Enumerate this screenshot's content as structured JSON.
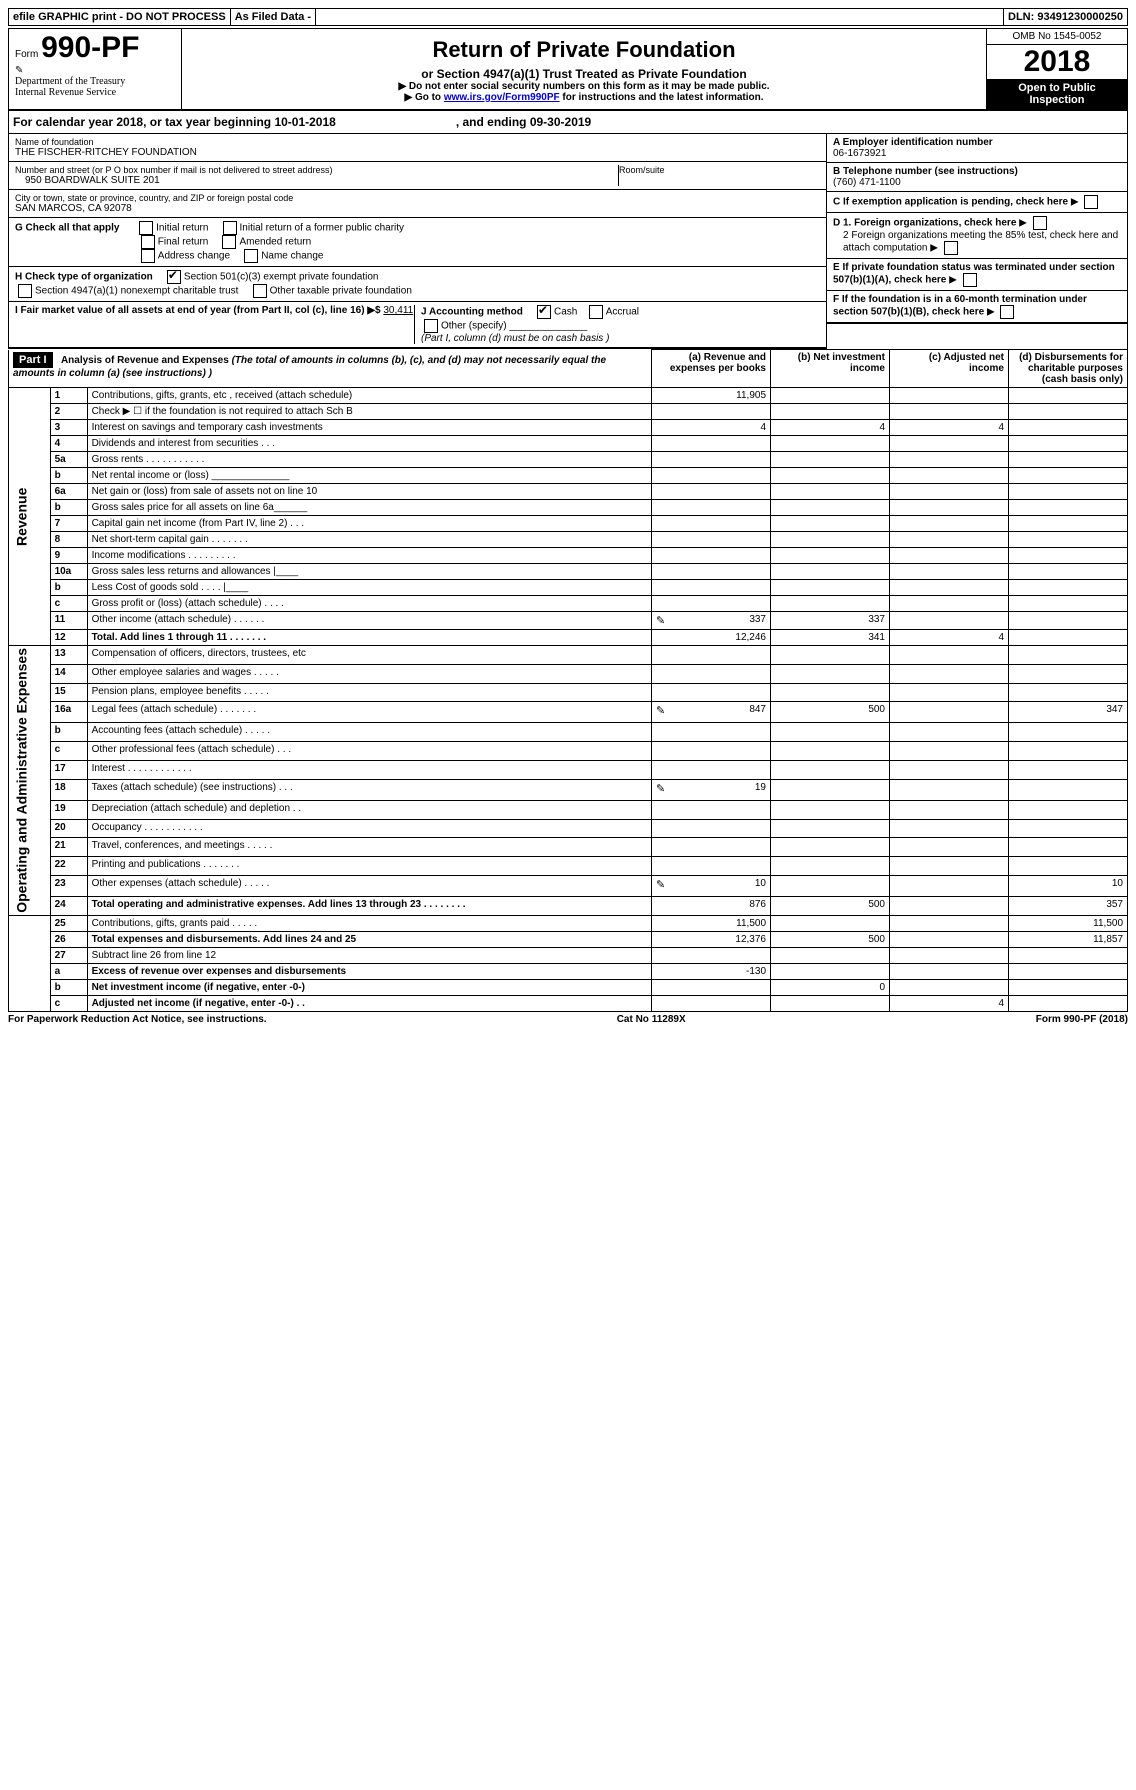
{
  "topbar": {
    "left": "efile GRAPHIC print - DO NOT PROCESS",
    "mid": "As Filed Data -",
    "right": "DLN: 93491230000250"
  },
  "header": {
    "form_prefix": "Form",
    "form_num": "990-PF",
    "dept": "Department of the Treasury",
    "irs": "Internal Revenue Service",
    "title": "Return of Private Foundation",
    "subtitle": "or Section 4947(a)(1) Trust Treated as Private Foundation",
    "note1": "▶ Do not enter social security numbers on this form as it may be made public.",
    "note2_pre": "▶ Go to ",
    "note2_link": "www.irs.gov/Form990PF",
    "note2_post": " for instructions and the latest information.",
    "omb": "OMB No 1545-0052",
    "year": "2018",
    "open": "Open to Public Inspection"
  },
  "cal": {
    "text_a": "For calendar year 2018, or tax year beginning 10-01-2018",
    "text_b": ", and ending 09-30-2019"
  },
  "info": {
    "name_lbl": "Name of foundation",
    "name": "THE FISCHER-RITCHEY FOUNDATION",
    "addr_lbl": "Number and street (or P O  box number if mail is not delivered to street address)",
    "room_lbl": "Room/suite",
    "addr": "950 BOARDWALK SUITE 201",
    "city_lbl": "City or town, state or province, country, and ZIP or foreign postal code",
    "city": "SAN MARCOS, CA  92078",
    "ein_lbl": "A Employer identification number",
    "ein": "06-1673921",
    "tel_lbl": "B Telephone number (see instructions)",
    "tel": "(760) 471-1100",
    "c_lbl": "C If exemption application is pending, check here",
    "g_lbl": "G Check all that apply",
    "g_opts": [
      "Initial return",
      "Initial return of a former public charity",
      "Final return",
      "Amended return",
      "Address change",
      "Name change"
    ],
    "h_lbl": "H Check type of organization",
    "h_a": "Section 501(c)(3) exempt private foundation",
    "h_b": "Section 4947(a)(1) nonexempt charitable trust",
    "h_c": "Other taxable private foundation",
    "d1": "D 1. Foreign organizations, check here",
    "d2": "2 Foreign organizations meeting the 85% test, check here and attach computation",
    "e": "E  If private foundation status was terminated under section 507(b)(1)(A), check here",
    "f": "F  If the foundation is in a 60-month termination under section 507(b)(1)(B), check here",
    "i_lbl_a": "I Fair market value of all assets at end of year (from Part II, col  (c), line 16) ▶$ ",
    "i_val": "30,411",
    "j_lbl": "J Accounting method",
    "j_cash": "Cash",
    "j_acc": "Accrual",
    "j_other": "Other (specify)",
    "j_note": "(Part I, column (d) must be on cash basis )"
  },
  "part1": {
    "label": "Part I",
    "title": "Analysis of Revenue and Expenses",
    "title_note": " (The total of amounts in columns (b), (c), and (d) may not necessarily equal the amounts in column (a) (see instructions) )",
    "col_a": "(a) Revenue and expenses per books",
    "col_b": "(b) Net investment income",
    "col_c": "(c) Adjusted net income",
    "col_d": "(d) Disbursements for charitable purposes (cash basis only)",
    "side_rev": "Revenue",
    "side_exp": "Operating and Administrative Expenses"
  },
  "rows": [
    {
      "n": "1",
      "label": "Contributions, gifts, grants, etc , received (attach schedule)",
      "a": "11,905",
      "b": "",
      "c": "",
      "d": ""
    },
    {
      "n": "2",
      "label": "Check ▶ ☐ if the foundation is not required to attach Sch  B",
      "a": "",
      "b": "",
      "c": "",
      "d": ""
    },
    {
      "n": "3",
      "label": "Interest on savings and temporary cash investments",
      "a": "4",
      "b": "4",
      "c": "4",
      "d": ""
    },
    {
      "n": "4",
      "label": "Dividends and interest from securities   .   .   .",
      "a": "",
      "b": "",
      "c": "",
      "d": ""
    },
    {
      "n": "5a",
      "label": "Gross rents   .   .   .   .   .   .   .   .   .   .   .",
      "a": "",
      "b": "",
      "c": "",
      "d": ""
    },
    {
      "n": "b",
      "label": "Net rental income or (loss)  ______________",
      "a": "",
      "b": "",
      "c": "",
      "d": ""
    },
    {
      "n": "6a",
      "label": "Net gain or (loss) from sale of assets not on line 10",
      "a": "",
      "b": "",
      "c": "",
      "d": ""
    },
    {
      "n": "b",
      "label": "Gross sales price for all assets on line 6a______",
      "a": "",
      "b": "",
      "c": "",
      "d": ""
    },
    {
      "n": "7",
      "label": "Capital gain net income (from Part IV, line 2)   .   .   .",
      "a": "",
      "b": "",
      "c": "",
      "d": ""
    },
    {
      "n": "8",
      "label": "Net short-term capital gain   .   .   .   .   .   .   .",
      "a": "",
      "b": "",
      "c": "",
      "d": ""
    },
    {
      "n": "9",
      "label": "Income modifications   .   .   .   .   .   .   .   .   .",
      "a": "",
      "b": "",
      "c": "",
      "d": ""
    },
    {
      "n": "10a",
      "label": "Gross sales less returns and allowances  |____",
      "a": "",
      "b": "",
      "c": "",
      "d": ""
    },
    {
      "n": "b",
      "label": "Less  Cost of goods sold   .   .   .   .  |____",
      "a": "",
      "b": "",
      "c": "",
      "d": ""
    },
    {
      "n": "c",
      "label": "Gross profit or (loss) (attach schedule)   .   .   .   .",
      "a": "",
      "b": "",
      "c": "",
      "d": ""
    },
    {
      "n": "11",
      "label": "Other income (attach schedule)   .   .   .   .   .   .",
      "a": "337",
      "b": "337",
      "c": "",
      "d": "",
      "icon": true
    },
    {
      "n": "12",
      "label": "Total. Add lines 1 through 11   .   .   .   .   .   .   .",
      "a": "12,246",
      "b": "341",
      "c": "4",
      "d": "",
      "bold": true
    },
    {
      "n": "13",
      "label": "Compensation of officers, directors, trustees, etc",
      "a": "",
      "b": "",
      "c": "",
      "d": ""
    },
    {
      "n": "14",
      "label": "Other employee salaries and wages   .   .   .   .   .",
      "a": "",
      "b": "",
      "c": "",
      "d": ""
    },
    {
      "n": "15",
      "label": "Pension plans, employee benefits   .   .   .   .   .",
      "a": "",
      "b": "",
      "c": "",
      "d": ""
    },
    {
      "n": "16a",
      "label": "Legal fees (attach schedule)   .   .   .   .   .   .   .",
      "a": "847",
      "b": "500",
      "c": "",
      "d": "347",
      "icon": true
    },
    {
      "n": "b",
      "label": "Accounting fees (attach schedule)   .   .   .   .   .",
      "a": "",
      "b": "",
      "c": "",
      "d": ""
    },
    {
      "n": "c",
      "label": "Other professional fees (attach schedule)   .   .   .",
      "a": "",
      "b": "",
      "c": "",
      "d": ""
    },
    {
      "n": "17",
      "label": "Interest   .   .   .   .   .   .   .   .   .   .   .   .",
      "a": "",
      "b": "",
      "c": "",
      "d": ""
    },
    {
      "n": "18",
      "label": "Taxes (attach schedule) (see instructions)   .   .   .",
      "a": "19",
      "b": "",
      "c": "",
      "d": "",
      "icon": true
    },
    {
      "n": "19",
      "label": "Depreciation (attach schedule) and depletion   .   .",
      "a": "",
      "b": "",
      "c": "",
      "d": ""
    },
    {
      "n": "20",
      "label": "Occupancy   .   .   .   .   .   .   .   .   .   .   .",
      "a": "",
      "b": "",
      "c": "",
      "d": ""
    },
    {
      "n": "21",
      "label": "Travel, conferences, and meetings   .   .   .   .   .",
      "a": "",
      "b": "",
      "c": "",
      "d": ""
    },
    {
      "n": "22",
      "label": "Printing and publications   .   .   .   .   .   .   .",
      "a": "",
      "b": "",
      "c": "",
      "d": ""
    },
    {
      "n": "23",
      "label": "Other expenses (attach schedule)   .   .   .   .   .",
      "a": "10",
      "b": "",
      "c": "",
      "d": "10",
      "icon": true
    },
    {
      "n": "24",
      "label": "Total operating and administrative expenses. Add lines 13 through 23   .   .   .   .   .   .   .   .",
      "a": "876",
      "b": "500",
      "c": "",
      "d": "357",
      "bold": true
    },
    {
      "n": "25",
      "label": "Contributions, gifts, grants paid   .   .   .   .   .",
      "a": "11,500",
      "b": "",
      "c": "",
      "d": "11,500"
    },
    {
      "n": "26",
      "label": "Total expenses and disbursements. Add lines 24 and 25",
      "a": "12,376",
      "b": "500",
      "c": "",
      "d": "11,857",
      "bold": true
    },
    {
      "n": "27",
      "label": "Subtract line 26 from line 12",
      "a": "",
      "b": "",
      "c": "",
      "d": ""
    },
    {
      "n": "a",
      "label": "Excess of revenue over expenses and disbursements",
      "a": "-130",
      "b": "",
      "c": "",
      "d": "",
      "bold": true
    },
    {
      "n": "b",
      "label": "Net investment income (if negative, enter -0-)",
      "a": "",
      "b": "0",
      "c": "",
      "d": "",
      "bold": true
    },
    {
      "n": "c",
      "label": "Adjusted net income (if negative, enter -0-)   .   .",
      "a": "",
      "b": "",
      "c": "4",
      "d": "",
      "bold": true
    }
  ],
  "footer": {
    "left": "For Paperwork Reduction Act Notice, see instructions.",
    "mid": "Cat  No  11289X",
    "right": "Form 990-PF (2018)"
  }
}
